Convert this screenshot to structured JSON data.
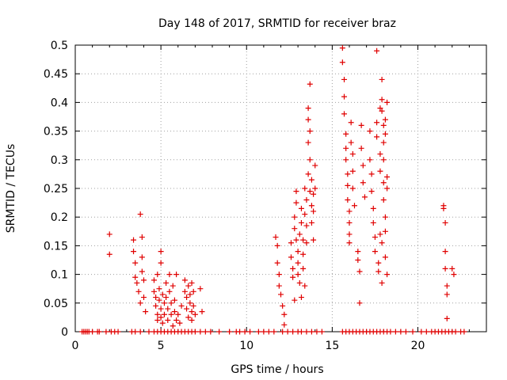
{
  "chart_data": {
    "type": "scatter",
    "title": "Day 148 of 2017, SRMTID for receiver braz",
    "xlabel": "GPS time / hours",
    "ylabel": "SRMTID / TECUs",
    "xlim": [
      0,
      24
    ],
    "ylim": [
      0,
      0.5
    ],
    "xticks": [
      "0",
      "5",
      "10",
      "15",
      "20"
    ],
    "yticks": [
      "0",
      "0.05",
      "0.1",
      "0.15",
      "0.2",
      "0.25",
      "0.3",
      "0.35",
      "0.4",
      "0.45",
      "0.5"
    ],
    "grid": true,
    "marker": "+",
    "color": "#e00000",
    "series": [
      {
        "name": "SRMTID",
        "points": [
          [
            2.0,
            0.17
          ],
          [
            2.0,
            0.135
          ],
          [
            3.4,
            0.16
          ],
          [
            3.4,
            0.14
          ],
          [
            3.5,
            0.12
          ],
          [
            3.5,
            0.095
          ],
          [
            3.6,
            0.085
          ],
          [
            3.7,
            0.07
          ],
          [
            3.8,
            0.05
          ],
          [
            3.8,
            0.205
          ],
          [
            3.9,
            0.165
          ],
          [
            3.9,
            0.13
          ],
          [
            3.9,
            0.105
          ],
          [
            4.0,
            0.09
          ],
          [
            4.0,
            0.06
          ],
          [
            4.1,
            0.035
          ],
          [
            4.6,
            0.09
          ],
          [
            4.6,
            0.07
          ],
          [
            4.7,
            0.06
          ],
          [
            4.7,
            0.045
          ],
          [
            4.8,
            0.03
          ],
          [
            4.8,
            0.02
          ],
          [
            4.8,
            0.1
          ],
          [
            4.9,
            0.075
          ],
          [
            4.9,
            0.055
          ],
          [
            5.0,
            0.04
          ],
          [
            5.0,
            0.025
          ],
          [
            5.0,
            0.14
          ],
          [
            5.0,
            0.12
          ],
          [
            5.1,
            0.065
          ],
          [
            5.1,
            0.015
          ],
          [
            5.2,
            0.05
          ],
          [
            5.2,
            0.03
          ],
          [
            5.3,
            0.085
          ],
          [
            5.3,
            0.06
          ],
          [
            5.4,
            0.04
          ],
          [
            5.4,
            0.02
          ],
          [
            5.5,
            0.1
          ],
          [
            5.5,
            0.07
          ],
          [
            5.6,
            0.05
          ],
          [
            5.6,
            0.03
          ],
          [
            5.7,
            0.01
          ],
          [
            5.7,
            0.08
          ],
          [
            5.8,
            0.055
          ],
          [
            5.8,
            0.035
          ],
          [
            5.9,
            0.02
          ],
          [
            5.9,
            0.1
          ],
          [
            6.0,
            0.03
          ],
          [
            6.1,
            0.015
          ],
          [
            6.2,
            0.045
          ],
          [
            6.4,
            0.09
          ],
          [
            6.4,
            0.07
          ],
          [
            6.5,
            0.06
          ],
          [
            6.5,
            0.04
          ],
          [
            6.6,
            0.025
          ],
          [
            6.6,
            0.08
          ],
          [
            6.7,
            0.065
          ],
          [
            6.7,
            0.05
          ],
          [
            6.8,
            0.035
          ],
          [
            6.8,
            0.02
          ],
          [
            6.8,
            0.085
          ],
          [
            6.9,
            0.07
          ],
          [
            6.9,
            0.045
          ],
          [
            7.0,
            0.03
          ],
          [
            7.3,
            0.075
          ],
          [
            7.4,
            0.035
          ],
          [
            11.7,
            0.165
          ],
          [
            11.8,
            0.15
          ],
          [
            11.8,
            0.12
          ],
          [
            11.9,
            0.1
          ],
          [
            11.9,
            0.08
          ],
          [
            12.0,
            0.065
          ],
          [
            12.1,
            0.045
          ],
          [
            12.2,
            0.012
          ],
          [
            12.2,
            0.03
          ],
          [
            12.6,
            0.155
          ],
          [
            12.6,
            0.13
          ],
          [
            12.7,
            0.11
          ],
          [
            12.7,
            0.095
          ],
          [
            12.8,
            0.2
          ],
          [
            12.8,
            0.18
          ],
          [
            12.8,
            0.055
          ],
          [
            12.9,
            0.245
          ],
          [
            12.9,
            0.225
          ],
          [
            12.9,
            0.16
          ],
          [
            13.0,
            0.14
          ],
          [
            13.0,
            0.12
          ],
          [
            13.0,
            0.1
          ],
          [
            13.1,
            0.085
          ],
          [
            13.1,
            0.17
          ],
          [
            13.2,
            0.215
          ],
          [
            13.2,
            0.19
          ],
          [
            13.2,
            0.06
          ],
          [
            13.3,
            0.16
          ],
          [
            13.3,
            0.135
          ],
          [
            13.3,
            0.11
          ],
          [
            13.4,
            0.25
          ],
          [
            13.4,
            0.205
          ],
          [
            13.4,
            0.08
          ],
          [
            13.5,
            0.23
          ],
          [
            13.5,
            0.185
          ],
          [
            13.5,
            0.155
          ],
          [
            13.6,
            0.39
          ],
          [
            13.6,
            0.37
          ],
          [
            13.6,
            0.33
          ],
          [
            13.6,
            0.275
          ],
          [
            13.7,
            0.432
          ],
          [
            13.7,
            0.35
          ],
          [
            13.7,
            0.3
          ],
          [
            13.7,
            0.245
          ],
          [
            13.8,
            0.265
          ],
          [
            13.8,
            0.22
          ],
          [
            13.8,
            0.19
          ],
          [
            13.9,
            0.24
          ],
          [
            13.9,
            0.21
          ],
          [
            13.9,
            0.16
          ],
          [
            14.0,
            0.29
          ],
          [
            14.0,
            0.25
          ],
          [
            15.6,
            0.495
          ],
          [
            15.6,
            0.47
          ],
          [
            15.7,
            0.44
          ],
          [
            15.7,
            0.41
          ],
          [
            15.7,
            0.38
          ],
          [
            15.8,
            0.345
          ],
          [
            15.8,
            0.32
          ],
          [
            15.8,
            0.3
          ],
          [
            15.9,
            0.275
          ],
          [
            15.9,
            0.255
          ],
          [
            15.9,
            0.23
          ],
          [
            16.0,
            0.21
          ],
          [
            16.0,
            0.19
          ],
          [
            16.0,
            0.17
          ],
          [
            16.0,
            0.155
          ],
          [
            16.1,
            0.365
          ],
          [
            16.1,
            0.33
          ],
          [
            16.2,
            0.31
          ],
          [
            16.2,
            0.28
          ],
          [
            16.2,
            0.25
          ],
          [
            16.3,
            0.22
          ],
          [
            16.5,
            0.14
          ],
          [
            16.5,
            0.125
          ],
          [
            16.6,
            0.105
          ],
          [
            16.6,
            0.05
          ],
          [
            16.7,
            0.36
          ],
          [
            16.7,
            0.32
          ],
          [
            16.8,
            0.29
          ],
          [
            16.8,
            0.26
          ],
          [
            16.9,
            0.235
          ],
          [
            17.2,
            0.35
          ],
          [
            17.2,
            0.3
          ],
          [
            17.3,
            0.275
          ],
          [
            17.3,
            0.245
          ],
          [
            17.4,
            0.215
          ],
          [
            17.4,
            0.19
          ],
          [
            17.5,
            0.165
          ],
          [
            17.5,
            0.14
          ],
          [
            17.6,
            0.49
          ],
          [
            17.6,
            0.365
          ],
          [
            17.6,
            0.34
          ],
          [
            17.7,
            0.12
          ],
          [
            17.7,
            0.105
          ],
          [
            17.8,
            0.39
          ],
          [
            17.8,
            0.31
          ],
          [
            17.8,
            0.28
          ],
          [
            17.8,
            0.17
          ],
          [
            17.9,
            0.44
          ],
          [
            17.9,
            0.405
          ],
          [
            17.9,
            0.385
          ],
          [
            17.9,
            0.155
          ],
          [
            17.9,
            0.085
          ],
          [
            18.0,
            0.36
          ],
          [
            18.0,
            0.33
          ],
          [
            18.0,
            0.3
          ],
          [
            18.0,
            0.26
          ],
          [
            18.0,
            0.23
          ],
          [
            18.1,
            0.37
          ],
          [
            18.1,
            0.345
          ],
          [
            18.1,
            0.2
          ],
          [
            18.1,
            0.175
          ],
          [
            18.1,
            0.13
          ],
          [
            18.2,
            0.4
          ],
          [
            18.2,
            0.27
          ],
          [
            18.2,
            0.25
          ],
          [
            18.2,
            0.1
          ],
          [
            21.5,
            0.22
          ],
          [
            21.5,
            0.215
          ],
          [
            21.6,
            0.19
          ],
          [
            21.6,
            0.14
          ],
          [
            21.6,
            0.11
          ],
          [
            21.7,
            0.08
          ],
          [
            21.7,
            0.065
          ],
          [
            21.7,
            0.023
          ],
          [
            22.0,
            0.11
          ],
          [
            22.1,
            0.1
          ]
        ],
        "zero_x": [
          0.4,
          0.5,
          0.6,
          0.7,
          0.8,
          1.0,
          1.3,
          1.4,
          1.8,
          2.1,
          2.3,
          2.5,
          3.3,
          3.5,
          3.8,
          4.3,
          4.6,
          4.8,
          5.0,
          5.2,
          5.4,
          5.6,
          5.8,
          6.0,
          6.2,
          6.4,
          6.6,
          6.8,
          7.0,
          7.3,
          7.6,
          7.9,
          8.4,
          9.0,
          9.4,
          9.6,
          9.9,
          10.2,
          10.7,
          11.0,
          11.3,
          11.6,
          12.1,
          12.4,
          12.7,
          13.0,
          13.2,
          13.5,
          13.8,
          14.1,
          14.4,
          15.6,
          15.8,
          16.0,
          16.2,
          16.4,
          16.6,
          16.8,
          17.0,
          17.2,
          17.4,
          17.6,
          17.8,
          18.0,
          18.2,
          18.4,
          18.7,
          19.0,
          19.3,
          19.7,
          20.2,
          20.5,
          20.8,
          21.0,
          21.2,
          21.4,
          21.6,
          21.8,
          22.0,
          22.2,
          22.5,
          22.7
        ]
      }
    ]
  }
}
